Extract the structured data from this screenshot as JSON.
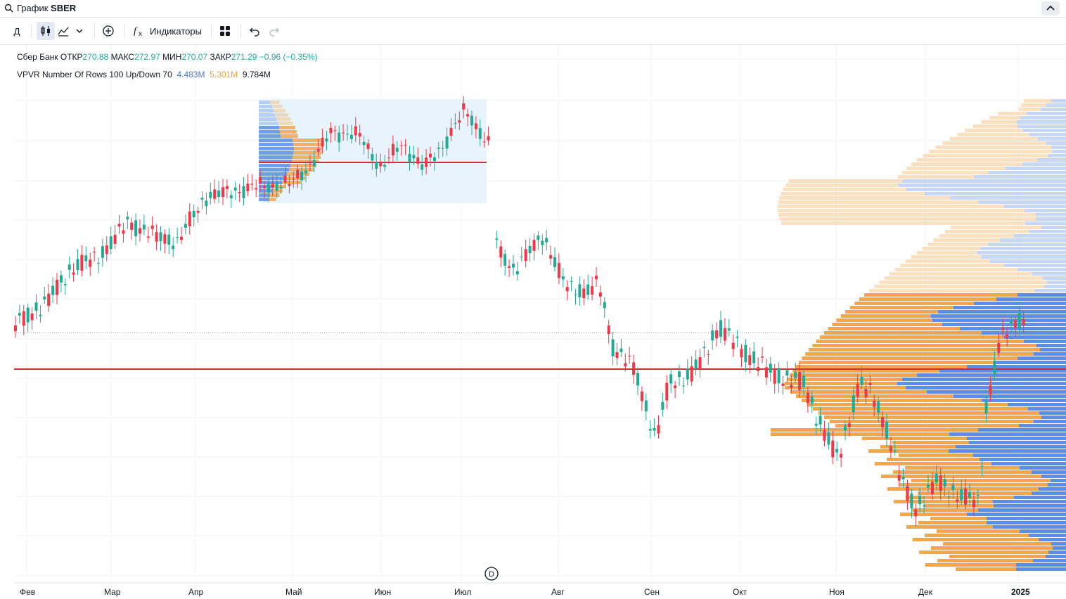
{
  "header": {
    "title_prefix": "График",
    "symbol": "SBER"
  },
  "toolbar": {
    "interval": "Д",
    "indicators_label": "Индикаторы"
  },
  "legend": {
    "name": "Сбер Банк",
    "open_label": "ОТКР",
    "open": "270.88",
    "high_label": "МАКС",
    "high": "272.97",
    "low_label": "МИН",
    "low": "270.07",
    "close_label": "ЗАКР",
    "close": "271.29",
    "change": "−0.96 (−0.35%)"
  },
  "vpvr": {
    "label": "VPVR Number Of Rows 100 Up/Down 70",
    "up": "4.483M",
    "down": "5.301M",
    "total": "9.784M"
  },
  "axis": {
    "months": [
      "Фев",
      "Мар",
      "Апр",
      "Май",
      "Июн",
      "Июл",
      "Авг",
      "Сен",
      "Окт",
      "Ноя",
      "Дек",
      "2025"
    ]
  },
  "dividend_marker": "D",
  "colors": {
    "up": "#22ab94",
    "down": "#f23645",
    "vp_up": "#5b8def",
    "vp_down": "#f5a54a",
    "poc": "#d32f2f",
    "range_bg": "#e8f4fc"
  },
  "icons": [
    "search-icon",
    "chevron-up-icon",
    "candles-icon",
    "area-chart-icon",
    "chevron-down-icon",
    "plus-circle-icon",
    "fx-icon",
    "grid-icon",
    "undo-icon",
    "redo-icon"
  ]
}
